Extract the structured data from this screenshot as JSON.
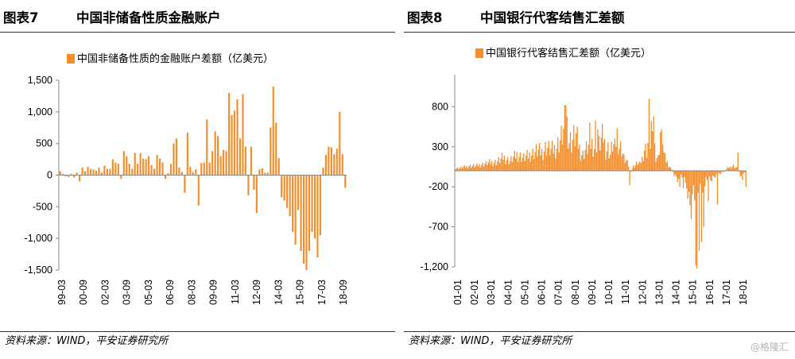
{
  "watermark": "@格隆汇",
  "accent_color": "#F28E2B",
  "figures": [
    {
      "number_label": "图表7",
      "title": "中国非储备性质金融账户",
      "source": "资料来源：WIND，平安证券研究所",
      "chart_data": {
        "type": "bar",
        "legend": "中国非储备性质的金融账户差额（亿美元）",
        "legend_placement": "top",
        "ylim": [
          -1500,
          1500
        ],
        "yticks": [
          1500,
          1000,
          500,
          0,
          -500,
          -1000,
          -1500
        ],
        "ytick_labels": [
          "1,500",
          "1,000",
          "500",
          "0",
          "-500",
          "-1,000",
          "-1,500"
        ],
        "xtick_labels": [
          "99-03",
          "00-09",
          "02-03",
          "03-09",
          "05-03",
          "06-09",
          "08-03",
          "09-09",
          "11-03",
          "12-09",
          "14-03",
          "15-09",
          "17-03",
          "18-09"
        ],
        "x_start": "99-03",
        "x_end": "18-09",
        "frequency": "quarterly",
        "grid": false,
        "values": [
          60,
          20,
          -20,
          -30,
          20,
          -40,
          40,
          -100,
          120,
          60,
          130,
          100,
          90,
          70,
          120,
          40,
          150,
          100,
          100,
          250,
          200,
          180,
          -60,
          380,
          300,
          180,
          100,
          350,
          180,
          350,
          260,
          250,
          300,
          160,
          100,
          320,
          260,
          200,
          -60,
          30,
          180,
          500,
          580,
          120,
          50,
          -280,
          670,
          130,
          50,
          90,
          -480,
          190,
          200,
          880,
          200,
          380,
          690,
          620,
          300,
          400,
          380,
          1300,
          950,
          1020,
          1200,
          580,
          1280,
          450,
          -320,
          450,
          -230,
          -600,
          90,
          110,
          40,
          40,
          750,
          1400,
          830,
          270,
          -350,
          -400,
          -520,
          -650,
          -900,
          -1100,
          -550,
          -1200,
          -1400,
          -1500,
          -1200,
          -900,
          -1000,
          -1300,
          -950,
          120,
          320,
          450,
          440,
          330,
          420,
          1000,
          330,
          -200
        ]
      }
    },
    {
      "number_label": "图表8",
      "title": "中国银行代客结售汇差额",
      "source": "资料来源：WIND，平安证券研究所",
      "chart_data": {
        "type": "bar",
        "legend": "中国银行代客结售汇差额（亿美元）",
        "legend_placement": "top",
        "ylim": [
          -1200,
          1200
        ],
        "yticks": [
          800,
          300,
          -200,
          -700,
          -1200
        ],
        "ytick_labels": [
          "800",
          "300",
          "-200",
          "-700",
          "-1,200"
        ],
        "xtick_labels": [
          "01-01",
          "02-01",
          "03-01",
          "04-01",
          "05-01",
          "06-01",
          "07-01",
          "08-01",
          "09-01",
          "10-01",
          "11-01",
          "12-01",
          "13-01",
          "14-01",
          "15-01",
          "16-01",
          "17-01",
          "18-01"
        ],
        "x_start": "01-01",
        "x_end": "18-01",
        "frequency": "monthly",
        "grid": false,
        "anchor_values": [
          [
            0,
            30
          ],
          [
            6,
            40
          ],
          [
            12,
            60
          ],
          [
            18,
            60
          ],
          [
            24,
            80
          ],
          [
            30,
            100
          ],
          [
            36,
            110
          ],
          [
            40,
            140
          ],
          [
            42,
            170
          ],
          [
            44,
            150
          ],
          [
            48,
            120
          ],
          [
            54,
            200
          ],
          [
            60,
            160
          ],
          [
            66,
            200
          ],
          [
            72,
            250
          ],
          [
            76,
            230
          ],
          [
            80,
            300
          ],
          [
            84,
            250
          ],
          [
            88,
            280
          ],
          [
            92,
            380
          ],
          [
            95,
            480
          ],
          [
            97,
            650
          ],
          [
            99,
            500
          ],
          [
            100,
            380
          ],
          [
            102,
            360
          ],
          [
            104,
            420
          ],
          [
            106,
            430
          ],
          [
            108,
            330
          ],
          [
            110,
            230
          ],
          [
            112,
            200
          ],
          [
            114,
            260
          ],
          [
            116,
            280
          ],
          [
            118,
            320
          ],
          [
            120,
            340
          ],
          [
            122,
            300
          ],
          [
            124,
            360
          ],
          [
            126,
            320
          ],
          [
            128,
            380
          ],
          [
            130,
            430
          ],
          [
            132,
            250
          ],
          [
            134,
            280
          ],
          [
            136,
            200
          ],
          [
            138,
            330
          ],
          [
            140,
            280
          ],
          [
            142,
            450
          ],
          [
            144,
            300
          ],
          [
            146,
            280
          ],
          [
            148,
            150
          ],
          [
            150,
            120
          ],
          [
            152,
            60
          ],
          [
            154,
            -20
          ],
          [
            156,
            50
          ],
          [
            158,
            70
          ],
          [
            160,
            100
          ],
          [
            162,
            80
          ],
          [
            164,
            150
          ],
          [
            166,
            280
          ],
          [
            168,
            250
          ],
          [
            170,
            450
          ],
          [
            172,
            300
          ],
          [
            174,
            380
          ],
          [
            176,
            200
          ],
          [
            178,
            150
          ],
          [
            180,
            480
          ],
          [
            182,
            280
          ],
          [
            184,
            150
          ],
          [
            186,
            100
          ],
          [
            188,
            50
          ],
          [
            190,
            20
          ],
          [
            192,
            -50
          ],
          [
            194,
            -70
          ],
          [
            196,
            -120
          ],
          [
            198,
            -80
          ],
          [
            200,
            -100
          ],
          [
            202,
            -150
          ],
          [
            204,
            -180
          ],
          [
            206,
            -300
          ],
          [
            208,
            -250
          ],
          [
            210,
            -400
          ],
          [
            212,
            -300
          ],
          [
            214,
            -250
          ],
          [
            216,
            -200
          ],
          [
            218,
            -180
          ],
          [
            220,
            -150
          ],
          [
            222,
            -100
          ],
          [
            224,
            -120
          ],
          [
            226,
            -80
          ],
          [
            228,
            -60
          ],
          [
            230,
            -50
          ],
          [
            232,
            -40
          ],
          [
            234,
            -20
          ],
          [
            236,
            -10
          ],
          [
            238,
            20
          ],
          [
            240,
            40
          ],
          [
            242,
            50
          ],
          [
            244,
            60
          ],
          [
            246,
            40
          ],
          [
            248,
            30
          ],
          [
            250,
            -50
          ],
          [
            252,
            -100
          ],
          [
            254,
            -20
          ],
          [
            255,
            -180
          ]
        ],
        "spikes": [
          [
            97,
            820
          ],
          [
            101,
            480
          ],
          [
            118,
            600
          ],
          [
            123,
            630
          ],
          [
            125,
            520
          ],
          [
            153,
            -180
          ],
          [
            170,
            900
          ],
          [
            172,
            620
          ],
          [
            174,
            680
          ],
          [
            182,
            330
          ],
          [
            197,
            -200
          ],
          [
            200,
            -220
          ],
          [
            204,
            -350
          ],
          [
            207,
            -600
          ],
          [
            211,
            -1180
          ],
          [
            212,
            -1220
          ],
          [
            214,
            -1000
          ],
          [
            216,
            -890
          ],
          [
            218,
            -700
          ],
          [
            222,
            -380
          ],
          [
            230,
            -420
          ],
          [
            248,
            230
          ],
          [
            255,
            -200
          ]
        ]
      }
    }
  ]
}
